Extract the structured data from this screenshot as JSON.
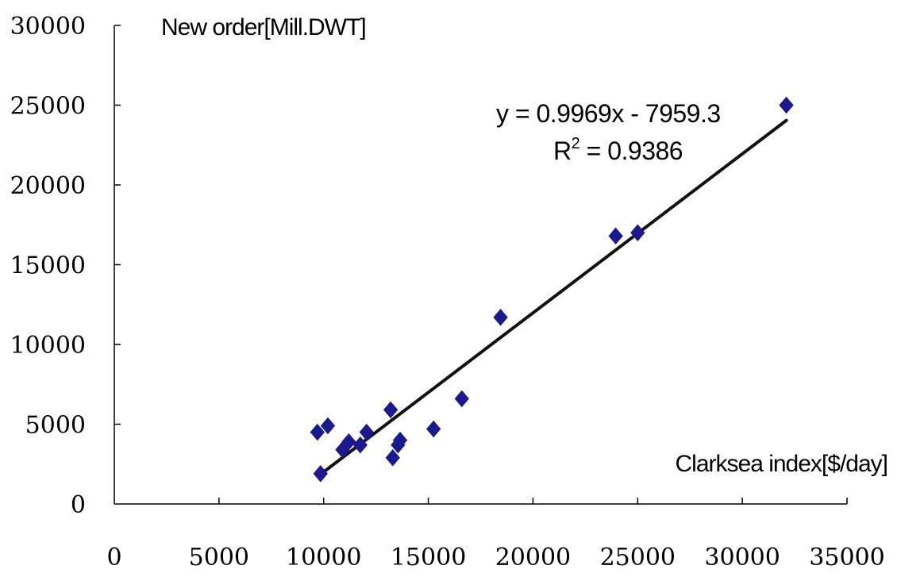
{
  "chart_data": {
    "type": "scatter",
    "xlabel": "Clarksea index[$/day]",
    "ylabel": "New order[Mill.DWT]",
    "xlim": [
      0,
      35000
    ],
    "ylim": [
      0,
      30000
    ],
    "x_ticks": [
      "0",
      "5000",
      "10000",
      "15000",
      "20000",
      "25000",
      "30000",
      "35000"
    ],
    "y_ticks": [
      "0",
      "5000",
      "10000",
      "15000",
      "20000",
      "25000",
      "30000"
    ],
    "grid": false,
    "legend": "none",
    "series": [
      {
        "marker": "diamond",
        "color": "#1a1a8c",
        "points": [
          [
            9700,
            4500
          ],
          [
            9850,
            1900
          ],
          [
            10200,
            4900
          ],
          [
            10900,
            3400
          ],
          [
            11200,
            3900
          ],
          [
            11750,
            3700
          ],
          [
            12050,
            4500
          ],
          [
            13200,
            5900
          ],
          [
            13300,
            2900
          ],
          [
            13550,
            3700
          ],
          [
            13650,
            4000
          ],
          [
            15250,
            4700
          ],
          [
            16600,
            6600
          ],
          [
            18450,
            11700
          ],
          [
            23950,
            16800
          ],
          [
            25000,
            17000
          ],
          [
            32100,
            25000
          ]
        ]
      }
    ],
    "trendline": {
      "color": "#111111",
      "x_range": [
        9850,
        32100
      ],
      "slope": 0.9969,
      "intercept": -7959.3
    },
    "annotations": {
      "equation": "y = 0.9969x - 7959.3",
      "r2_base": "R",
      "r2_sup": "2",
      "r2_rest": " = 0.9386"
    }
  }
}
